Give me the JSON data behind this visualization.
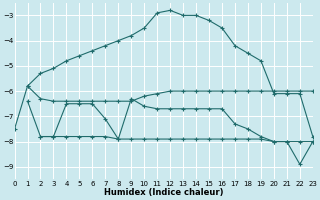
{
  "xlabel": "Humidex (Indice chaleur)",
  "background_color": "#cce9ee",
  "grid_color": "#b8dde3",
  "line_color": "#1f6b6b",
  "xlim": [
    0,
    23
  ],
  "ylim": [
    -9.5,
    -2.5
  ],
  "yticks": [
    -9,
    -8,
    -7,
    -6,
    -5,
    -4,
    -3
  ],
  "xticks": [
    0,
    1,
    2,
    3,
    4,
    5,
    6,
    7,
    8,
    9,
    10,
    11,
    12,
    13,
    14,
    15,
    16,
    17,
    18,
    19,
    20,
    21,
    22,
    23
  ],
  "line1_x": [
    0,
    1,
    2,
    3,
    4,
    5,
    6,
    7,
    8,
    9,
    10,
    11,
    12,
    13,
    14,
    15,
    16,
    17,
    18,
    19,
    20,
    21,
    22,
    23
  ],
  "line1_y": [
    -7.5,
    -5.8,
    -5.3,
    -5.1,
    -4.8,
    -4.6,
    -4.4,
    -4.2,
    -4.0,
    -3.8,
    -3.5,
    -2.9,
    -2.8,
    -3.0,
    -3.0,
    -3.2,
    -3.5,
    -4.2,
    -4.5,
    -4.8,
    -6.1,
    -6.1,
    -6.1,
    -7.8
  ],
  "line2_x": [
    1,
    2,
    3,
    4,
    5,
    6,
    7,
    8,
    9,
    10,
    11,
    12,
    13,
    14,
    15,
    16,
    17,
    18,
    19,
    20,
    21,
    22,
    23
  ],
  "line2_y": [
    -5.8,
    -6.3,
    -6.4,
    -6.4,
    -6.4,
    -6.4,
    -6.4,
    -6.4,
    -6.4,
    -6.2,
    -6.1,
    -6.0,
    -6.0,
    -6.0,
    -6.0,
    -6.0,
    -6.0,
    -6.0,
    -6.0,
    -6.0,
    -6.0,
    -6.0,
    -6.0
  ],
  "line3_x": [
    1,
    2,
    3,
    4,
    5,
    6,
    7,
    8,
    9,
    10,
    11,
    12,
    13,
    14,
    15,
    16,
    17,
    18,
    19,
    20,
    21,
    22,
    23
  ],
  "line3_y": [
    -6.4,
    -7.8,
    -7.8,
    -6.5,
    -6.5,
    -6.5,
    -7.1,
    -7.9,
    -6.3,
    -6.6,
    -6.7,
    -6.7,
    -6.7,
    -6.7,
    -6.7,
    -6.7,
    -7.3,
    -7.5,
    -7.8,
    -8.0,
    -8.0,
    -8.0,
    -8.0
  ],
  "line4_x": [
    2,
    3,
    4,
    5,
    6,
    7,
    8,
    9,
    10,
    11,
    12,
    13,
    14,
    15,
    16,
    17,
    18,
    19,
    20,
    21,
    22,
    23
  ],
  "line4_y": [
    -7.8,
    -7.8,
    -7.8,
    -7.8,
    -7.8,
    -7.8,
    -7.9,
    -7.9,
    -7.9,
    -7.9,
    -7.9,
    -7.9,
    -7.9,
    -7.9,
    -7.9,
    -7.9,
    -7.9,
    -7.9,
    -8.0,
    -8.0,
    -8.9,
    -8.0
  ]
}
